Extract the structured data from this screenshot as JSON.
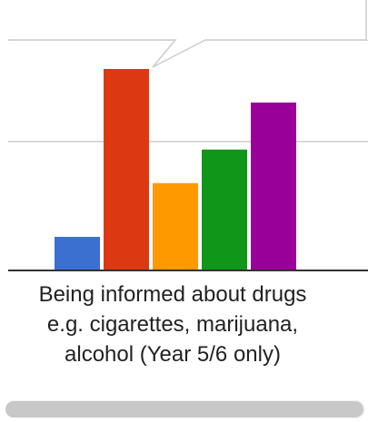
{
  "chart_data": {
    "type": "bar",
    "categories": [
      "Being informed about drugs e.g. cigarettes, marijuana, alcohol (Year 5/6 only)"
    ],
    "category_label_lines": [
      "Being informed about drugs",
      "e.g. cigarettes, marijuana,",
      "alcohol (Year 5/6 only)"
    ],
    "series": [
      {
        "color": "#3b70d1",
        "values": [
          5
        ]
      },
      {
        "color": "#dc3912",
        "values": [
          30
        ]
      },
      {
        "color": "#ff9900",
        "values": [
          13
        ]
      },
      {
        "color": "#109618",
        "values": [
          18
        ]
      },
      {
        "color": "#990099",
        "values": [
          25
        ]
      }
    ],
    "ylim": [
      0,
      30
    ],
    "grid": true,
    "title": "",
    "xlabel": "",
    "ylabel": ""
  },
  "scrollbar": {
    "visible": true
  }
}
